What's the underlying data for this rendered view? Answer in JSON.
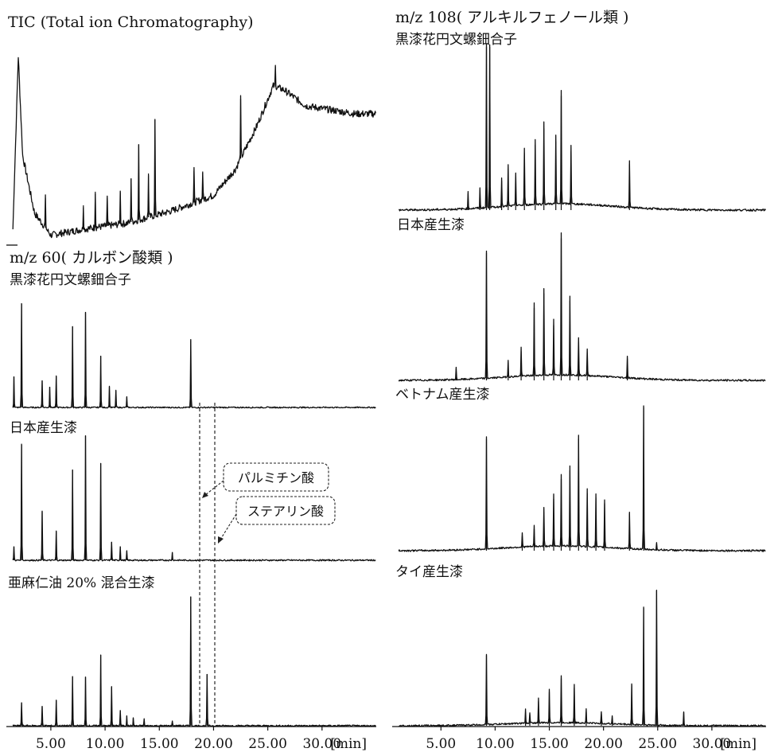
{
  "chart_data": [
    {
      "type": "line",
      "panel": "left-top",
      "title": "TIC (Total ion Chromatography)",
      "x_unit": "[min]",
      "baseline_level": [
        [
          1.5,
          0.08
        ],
        [
          2.0,
          0.95
        ],
        [
          2.4,
          0.45
        ],
        [
          3.5,
          0.16
        ],
        [
          5.0,
          0.05
        ],
        [
          8,
          0.08
        ],
        [
          12,
          0.11
        ],
        [
          16,
          0.17
        ],
        [
          20,
          0.25
        ],
        [
          22,
          0.38
        ],
        [
          24,
          0.6
        ],
        [
          25.5,
          0.8
        ],
        [
          26.5,
          0.78
        ],
        [
          28.5,
          0.7
        ],
        [
          33,
          0.66
        ]
      ],
      "peaks": [
        [
          4.5,
          0.15
        ],
        [
          8.0,
          0.12
        ],
        [
          9.1,
          0.18
        ],
        [
          10.2,
          0.14
        ],
        [
          11.4,
          0.16
        ],
        [
          12.4,
          0.22
        ],
        [
          13.1,
          0.38
        ],
        [
          14.0,
          0.22
        ],
        [
          14.6,
          0.48
        ],
        [
          18.2,
          0.16
        ],
        [
          19.0,
          0.14
        ],
        [
          22.5,
          0.3
        ],
        [
          25.7,
          0.1
        ]
      ]
    },
    {
      "type": "line",
      "panel": "left-1",
      "title": "m/z 60( カルボン酸類 )",
      "subtitle": "黒漆花円文螺鈿合子",
      "peaks": [
        [
          1.6,
          0.3
        ],
        [
          2.3,
          1.0
        ],
        [
          4.2,
          0.26
        ],
        [
          4.9,
          0.2
        ],
        [
          5.5,
          0.3
        ],
        [
          7.0,
          0.78
        ],
        [
          8.2,
          0.92
        ],
        [
          9.6,
          0.5
        ],
        [
          10.4,
          0.2
        ],
        [
          11.0,
          0.16
        ],
        [
          12.0,
          0.1
        ],
        [
          17.9,
          0.65
        ]
      ]
    },
    {
      "type": "line",
      "panel": "left-2",
      "title": "日本産生漆",
      "peaks": [
        [
          1.6,
          0.12
        ],
        [
          2.3,
          1.0
        ],
        [
          4.2,
          0.42
        ],
        [
          5.5,
          0.25
        ],
        [
          7.0,
          0.78
        ],
        [
          8.2,
          1.08
        ],
        [
          9.6,
          0.84
        ],
        [
          10.6,
          0.16
        ],
        [
          11.4,
          0.12
        ],
        [
          12.0,
          0.08
        ],
        [
          16.2,
          0.07
        ]
      ]
    },
    {
      "type": "line",
      "panel": "left-3",
      "title": "亜麻仁油 20% 混合生漆",
      "peaks": [
        [
          2.3,
          0.18
        ],
        [
          4.2,
          0.15
        ],
        [
          5.5,
          0.2
        ],
        [
          7.0,
          0.38
        ],
        [
          8.2,
          0.38
        ],
        [
          9.6,
          0.55
        ],
        [
          10.6,
          0.3
        ],
        [
          11.4,
          0.12
        ],
        [
          12.0,
          0.08
        ],
        [
          12.6,
          0.06
        ],
        [
          13.6,
          0.05
        ],
        [
          16.2,
          0.04
        ],
        [
          17.9,
          1.0
        ],
        [
          19.4,
          0.4
        ]
      ],
      "x_ticks": [
        "5.00",
        "10.00",
        "15.00",
        "20.00",
        "25.00",
        "30.00"
      ],
      "x_unit": "[min]"
    },
    {
      "type": "line",
      "panel": "right-top",
      "title": "m/z 108( アルキルフェノール類 )",
      "subtitle": "黒漆花円文螺鈿合子",
      "peaks": [
        [
          7.5,
          0.1
        ],
        [
          9.2,
          1.0
        ],
        [
          9.5,
          1.0
        ],
        [
          11.2,
          0.25
        ],
        [
          12.7,
          0.35
        ],
        [
          13.7,
          0.4
        ],
        [
          14.5,
          0.5
        ],
        [
          15.6,
          0.42
        ],
        [
          16.1,
          0.7
        ],
        [
          17.0,
          0.36
        ],
        [
          22.4,
          0.28
        ],
        [
          8.6,
          0.12
        ],
        [
          10.6,
          0.18
        ],
        [
          11.9,
          0.2
        ]
      ]
    },
    {
      "type": "line",
      "panel": "right-1",
      "title": "日本産生漆",
      "peaks": [
        [
          6.4,
          0.08
        ],
        [
          9.2,
          0.88
        ],
        [
          11.2,
          0.12
        ],
        [
          12.4,
          0.2
        ],
        [
          13.6,
          0.5
        ],
        [
          14.5,
          0.6
        ],
        [
          15.4,
          0.38
        ],
        [
          16.1,
          0.98
        ],
        [
          16.9,
          0.55
        ],
        [
          17.7,
          0.26
        ],
        [
          18.5,
          0.18
        ],
        [
          22.2,
          0.15
        ]
      ]
    },
    {
      "type": "line",
      "panel": "right-2",
      "title": "ベトナム産生漆",
      "peaks": [
        [
          9.2,
          0.78
        ],
        [
          12.5,
          0.1
        ],
        [
          13.6,
          0.15
        ],
        [
          14.5,
          0.27
        ],
        [
          15.4,
          0.36
        ],
        [
          16.1,
          0.5
        ],
        [
          16.9,
          0.56
        ],
        [
          17.7,
          0.78
        ],
        [
          18.5,
          0.4
        ],
        [
          19.3,
          0.37
        ],
        [
          20.1,
          0.33
        ],
        [
          22.4,
          0.26
        ],
        [
          23.7,
          1.0
        ],
        [
          24.9,
          0.05
        ]
      ]
    },
    {
      "type": "line",
      "panel": "right-3",
      "title": "タイ産生漆",
      "peaks": [
        [
          9.2,
          0.52
        ],
        [
          12.8,
          0.1
        ],
        [
          14.0,
          0.18
        ],
        [
          15.0,
          0.25
        ],
        [
          16.1,
          0.35
        ],
        [
          17.3,
          0.28
        ],
        [
          18.4,
          0.1
        ],
        [
          19.8,
          0.08
        ],
        [
          22.6,
          0.3
        ],
        [
          23.7,
          0.87
        ],
        [
          24.9,
          1.0
        ],
        [
          27.4,
          0.1
        ],
        [
          13.2,
          0.08
        ],
        [
          20.8,
          0.06
        ]
      ],
      "x_ticks": [
        "5.00",
        "10.00",
        "15.00",
        "20.00",
        "25.00",
        "30.00"
      ],
      "x_unit": "[min]"
    }
  ],
  "annotations": {
    "palmitic": "パルミチン酸",
    "stearic": "ステアリン酸"
  }
}
